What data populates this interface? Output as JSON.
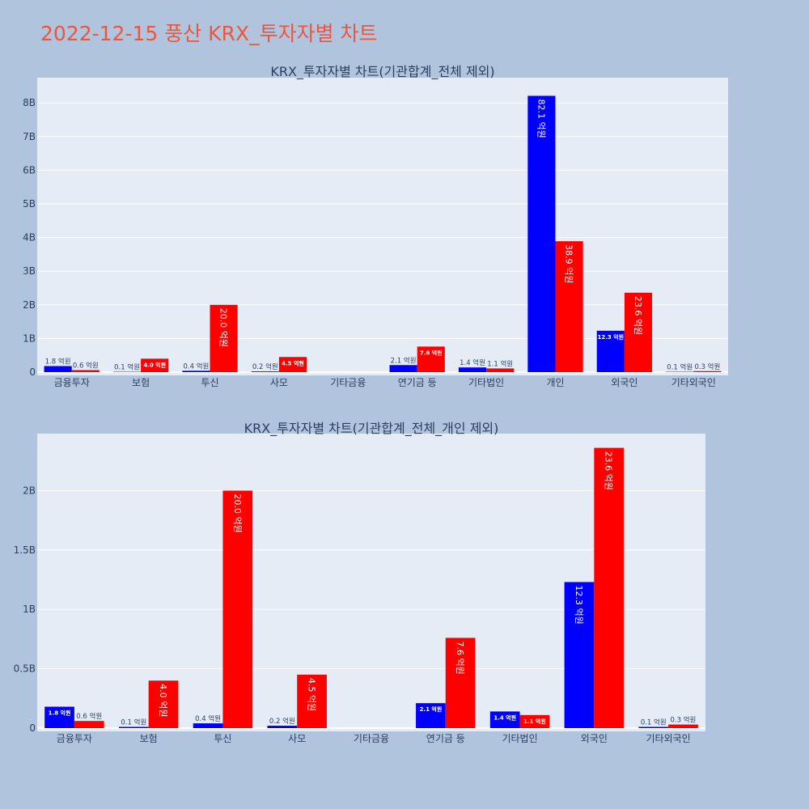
{
  "page_title": "2022-12-15 풍산 KRX_투자자별 차트",
  "colors": {
    "buy": "#0000ff",
    "sell": "#ff0000",
    "plot_bg": "#e5ecf6",
    "page_bg": "#b0c4de",
    "title": "#ef553b"
  },
  "chart_data": [
    {
      "type": "bar",
      "title": "KRX_투자자별 차트(기관합계_전체 제외)",
      "categories": [
        "금융투자",
        "보험",
        "투신",
        "사모",
        "기타금융",
        "연기금 등",
        "기타법인",
        "개인",
        "외국인",
        "기타외국인"
      ],
      "series": [
        {
          "values": [
            180000000,
            10000000,
            40000000,
            20000000,
            0,
            210000000,
            140000000,
            8210000000,
            1230000000,
            10000000
          ],
          "labels": [
            "1.8 억원",
            "0.1 억원",
            "0.4 억원",
            "0.2 억원",
            "",
            "2.1 억원",
            "1.4 억원",
            "82.1 억원",
            "12.3 억원",
            "0.1 억원"
          ]
        },
        {
          "values": [
            60000000,
            400000000,
            2000000000,
            450000000,
            0,
            760000000,
            110000000,
            3890000000,
            2360000000,
            30000000
          ],
          "labels": [
            "0.6 억원",
            "4.0 억원",
            "20.0 억원",
            "4.5 억원",
            "",
            "7.6 억원",
            "1.1 억원",
            "38.9 억원",
            "23.6 억원",
            "0.3 억원"
          ]
        }
      ],
      "yticks": [
        "0",
        "1B",
        "2B",
        "3B",
        "4B",
        "5B",
        "6B",
        "7B",
        "8B"
      ],
      "ylim": [
        0,
        8750000000
      ],
      "grid": true
    },
    {
      "type": "bar",
      "title": "KRX_투자자별 차트(기관합계_전체_개인 제외)",
      "categories": [
        "금융투자",
        "보험",
        "투신",
        "사모",
        "기타금융",
        "연기금 등",
        "기타법인",
        "외국인",
        "기타외국인"
      ],
      "series": [
        {
          "values": [
            180000000,
            10000000,
            40000000,
            20000000,
            0,
            210000000,
            140000000,
            1230000000,
            10000000
          ],
          "labels": [
            "1.8 억원",
            "0.1 억원",
            "0.4 억원",
            "0.2 억원",
            "",
            "2.1 억원",
            "1.4 억원",
            "12.3 억원",
            "0.1 억원"
          ]
        },
        {
          "values": [
            60000000,
            400000000,
            2000000000,
            450000000,
            0,
            760000000,
            110000000,
            2360000000,
            30000000
          ],
          "labels": [
            "0.6 억원",
            "4.0 억원",
            "20.0 억원",
            "4.5 억원",
            "",
            "7.6 억원",
            "1.1 억원",
            "23.6 억원",
            "0.3 억원"
          ]
        }
      ],
      "yticks": [
        "0",
        "0.5B",
        "1B",
        "1.5B",
        "2B"
      ],
      "ylim": [
        0,
        2480000000
      ],
      "grid": true
    }
  ]
}
